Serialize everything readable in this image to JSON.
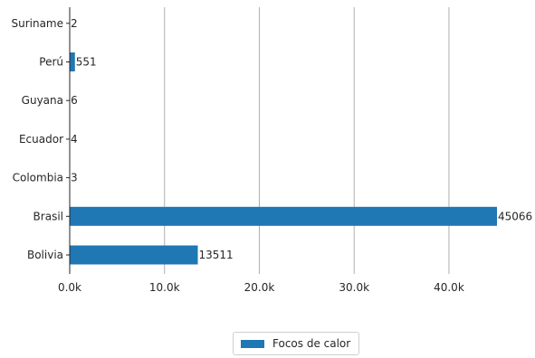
{
  "chart_data": {
    "type": "bar",
    "orientation": "horizontal",
    "title": "",
    "xlabel": "",
    "ylabel": "",
    "categories": [
      "Bolivia",
      "Brasil",
      "Colombia",
      "Ecuador",
      "Guyana",
      "Perú",
      "Suriname"
    ],
    "series": [
      {
        "name": "Focos de calor",
        "values": [
          13511,
          45066,
          3,
          4,
          6,
          551,
          2
        ]
      }
    ],
    "data_labels": [
      "13511",
      "45066",
      "3",
      "4",
      "6",
      "551",
      "2"
    ],
    "xlim": [
      0,
      45066
    ],
    "xticks": [
      0,
      10000,
      20000,
      30000,
      40000
    ],
    "xtick_labels": [
      "0.0k",
      "10.0k",
      "20.0k",
      "30.0k",
      "40.0k"
    ],
    "grid": "vertical",
    "legend_position": "bottom-center",
    "bar_color": "#1f77b4"
  }
}
